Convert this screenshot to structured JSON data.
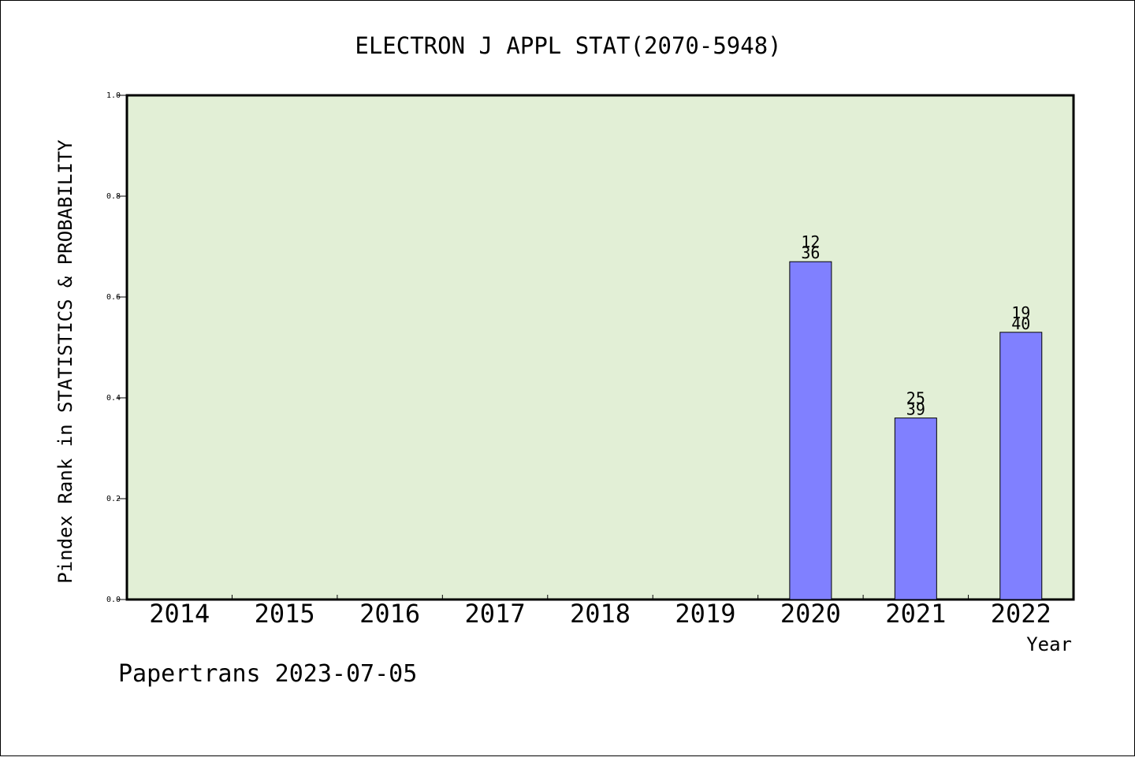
{
  "chart_data": {
    "type": "bar",
    "title": "ELECTRON J APPL STAT(2070-5948)",
    "xlabel": "Year",
    "ylabel": "Pindex Rank in STATISTICS & PROBABILITY",
    "footer": "Papertrans 2023-07-05",
    "categories": [
      "2014",
      "2015",
      "2016",
      "2017",
      "2018",
      "2019",
      "2020",
      "2021",
      "2022"
    ],
    "values": [
      null,
      null,
      null,
      null,
      null,
      null,
      0.67,
      0.36,
      0.53
    ],
    "bar_labels": [
      null,
      null,
      null,
      null,
      null,
      null,
      {
        "rank": "12",
        "total": "36"
      },
      {
        "rank": "25",
        "total": "39"
      },
      {
        "rank": "19",
        "total": "40"
      }
    ],
    "ylim": [
      0,
      1.0
    ],
    "yticks": [
      "0.0",
      "0.2",
      "0.4",
      "0.6",
      "0.8",
      "1.0"
    ],
    "grid": false,
    "colors": {
      "plot_background": "#e2efd6",
      "bar_fill": "#8080ff",
      "bar_stroke": "#000000"
    }
  }
}
